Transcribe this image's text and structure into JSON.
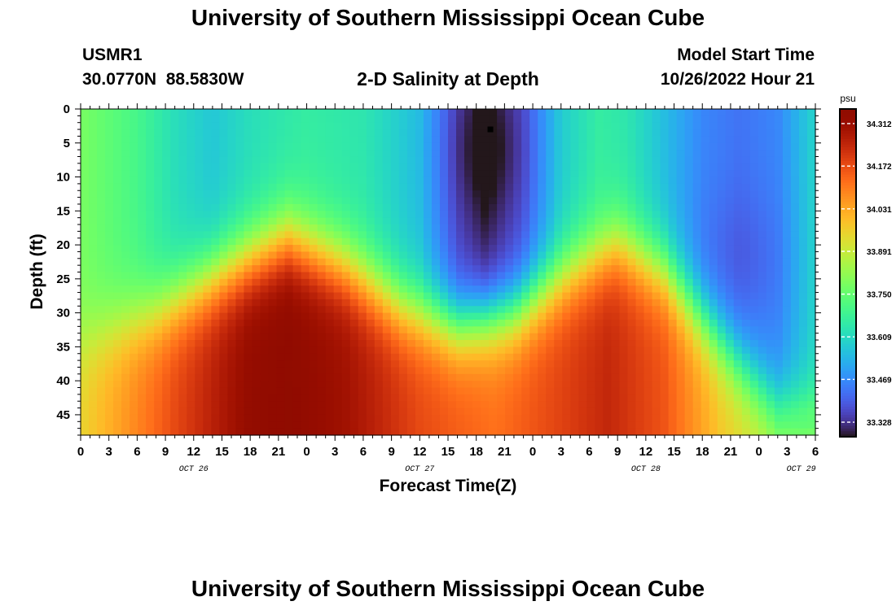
{
  "page": {
    "title": "University of Southern Mississippi Ocean Cube",
    "station_id": "USMR1",
    "station_coords": "30.0770N  88.5830W",
    "plot_title": "2-D Salinity at Depth",
    "model_start_label": "Model Start Time",
    "model_start_value": "10/26/2022 Hour 21",
    "footer_title": "University of Southern Mississippi Ocean Cube"
  },
  "chart_data": {
    "type": "heatmap",
    "title": "2-D Salinity at Depth",
    "xlabel": "Forecast Time(Z)",
    "ylabel": "Depth (ft)",
    "x_tick_labels": [
      "0",
      "3",
      "6",
      "9",
      "12",
      "15",
      "18",
      "21",
      "0",
      "3",
      "6",
      "9",
      "12",
      "15",
      "18",
      "21",
      "0",
      "3",
      "6",
      "9",
      "12",
      "15",
      "18",
      "21",
      "0",
      "3",
      "6"
    ],
    "x_date_labels": [
      {
        "label": "OCT 26",
        "tick_index": 4
      },
      {
        "label": "OCT 27",
        "tick_index": 12
      },
      {
        "label": "OCT 28",
        "tick_index": 20
      },
      {
        "label": "OCT 29",
        "tick_index": 25.5
      }
    ],
    "xlim_hours": [
      0,
      78
    ],
    "y_tick_labels": [
      "0",
      "5",
      "10",
      "15",
      "20",
      "25",
      "30",
      "35",
      "40",
      "45"
    ],
    "ylim_ft": [
      0,
      48
    ],
    "y_inverted": true,
    "colorbar": {
      "unit": "psu",
      "min": 33.28,
      "max": 34.36,
      "tick_labels": [
        "34.312",
        "34.172",
        "34.031",
        "33.891",
        "33.750",
        "33.609",
        "33.469",
        "33.328"
      ],
      "colormap": "turbo"
    },
    "marker": {
      "hour": 43.5,
      "depth_ft": 3,
      "shape": "square"
    },
    "features": [
      {
        "desc": "fresh lens",
        "hour": 43,
        "depth_ft": 6,
        "salinity": 33.3
      },
      {
        "desc": "fresh lens",
        "hour": 70,
        "depth_ft": 22,
        "salinity": 33.42
      },
      {
        "desc": "fresh lens",
        "hour": 14,
        "depth_ft": 5,
        "salinity": 33.56
      },
      {
        "desc": "saline core",
        "hour": 22,
        "depth_ft": 44,
        "salinity": 34.34
      },
      {
        "desc": "saline core",
        "hour": 56,
        "depth_ft": 44,
        "salinity": 34.22
      }
    ]
  }
}
